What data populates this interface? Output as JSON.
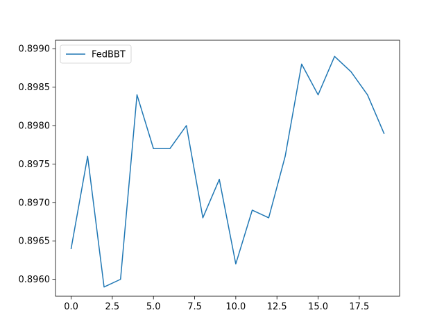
{
  "chart_data": {
    "type": "line",
    "title": "",
    "xlabel": "",
    "ylabel": "",
    "grid": false,
    "legend_placement": "upper-left",
    "xlim": [
      -0.95,
      19.95
    ],
    "ylim": [
      0.89578,
      0.89911
    ],
    "x_ticks": [
      0.0,
      2.5,
      5.0,
      7.5,
      10.0,
      12.5,
      15.0,
      17.5
    ],
    "x_tick_labels": [
      "0.0",
      "2.5",
      "5.0",
      "7.5",
      "10.0",
      "12.5",
      "15.0",
      "17.5"
    ],
    "y_ticks": [
      0.896,
      0.8965,
      0.897,
      0.8975,
      0.898,
      0.8985,
      0.899
    ],
    "y_tick_labels": [
      "0.8960",
      "0.8965",
      "0.8970",
      "0.8975",
      "0.8980",
      "0.8985",
      "0.8990"
    ],
    "x": [
      0,
      1,
      2,
      3,
      4,
      5,
      6,
      7,
      8,
      9,
      10,
      11,
      12,
      13,
      14,
      15,
      16,
      17,
      18,
      19
    ],
    "series": [
      {
        "name": "FedBBT",
        "color": "#1f77b4",
        "values": [
          0.8964,
          0.8976,
          0.8959,
          0.896,
          0.8984,
          0.8977,
          0.8977,
          0.898,
          0.8968,
          0.8973,
          0.8962,
          0.8969,
          0.8968,
          0.8976,
          0.8988,
          0.8984,
          0.8989,
          0.8987,
          0.8984,
          0.8979
        ]
      }
    ]
  }
}
